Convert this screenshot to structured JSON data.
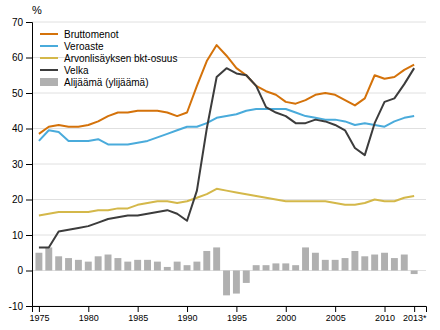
{
  "chart_data": {
    "type": "line",
    "ylabel": "%",
    "x": [
      1975,
      1976,
      1977,
      1978,
      1979,
      1980,
      1981,
      1982,
      1983,
      1984,
      1985,
      1986,
      1987,
      1988,
      1989,
      1990,
      1991,
      1992,
      1993,
      1994,
      1995,
      1996,
      1997,
      1998,
      1999,
      2000,
      2001,
      2002,
      2003,
      2004,
      2005,
      2006,
      2007,
      2008,
      2009,
      2010,
      2011,
      2012,
      2013
    ],
    "xlim": [
      1974.3,
      2014.2
    ],
    "xticks": [
      1975,
      1980,
      1985,
      1990,
      1995,
      2000,
      2005,
      2010,
      {
        "value": 2013,
        "label": "2013*"
      }
    ],
    "ylim": [
      -10,
      70
    ],
    "yticks": [
      -10,
      0,
      10,
      20,
      30,
      40,
      50,
      60,
      70
    ],
    "grid": true,
    "legend": "upper left",
    "series": [
      {
        "name": "Bruttomenot",
        "type": "line",
        "color": "#d4720a",
        "values": [
          38.5,
          40.5,
          41.0,
          40.5,
          40.5,
          41.0,
          42.0,
          43.5,
          44.5,
          44.5,
          45.0,
          45.0,
          45.0,
          44.5,
          43.5,
          44.5,
          52.0,
          59.0,
          63.5,
          60.5,
          57.0,
          55.0,
          52.0,
          50.5,
          49.5,
          47.5,
          47.0,
          48.0,
          49.5,
          50.0,
          49.5,
          48.0,
          46.5,
          48.5,
          55.0,
          54.0,
          54.5,
          56.5,
          58.0
        ]
      },
      {
        "name": "Veroaste",
        "type": "line",
        "color": "#4aabdb",
        "values": [
          36.5,
          39.5,
          39.0,
          36.5,
          36.5,
          36.5,
          37.0,
          35.5,
          35.5,
          35.5,
          36.0,
          36.5,
          37.5,
          38.5,
          39.5,
          40.5,
          40.5,
          41.5,
          43.0,
          43.5,
          44.0,
          45.0,
          45.5,
          45.5,
          45.5,
          45.5,
          44.5,
          43.5,
          43.0,
          42.5,
          42.5,
          42.0,
          41.0,
          41.5,
          41.0,
          40.5,
          42.0,
          43.0,
          43.5
        ]
      },
      {
        "name": "Arvonlisäyksen bkt-osuus",
        "type": "line",
        "color": "#d4b84a",
        "values": [
          15.5,
          16.0,
          16.5,
          16.5,
          16.5,
          16.5,
          17.0,
          17.0,
          17.5,
          17.5,
          18.5,
          19.0,
          19.5,
          19.5,
          19.0,
          19.5,
          20.5,
          21.5,
          23.0,
          22.5,
          22.0,
          21.5,
          21.0,
          20.5,
          20.0,
          19.5,
          19.5,
          19.5,
          19.5,
          19.5,
          19.0,
          18.5,
          18.5,
          19.0,
          20.0,
          19.5,
          19.5,
          20.5,
          21.0
        ]
      },
      {
        "name": "Velka",
        "type": "line",
        "color": "#3c3c3c",
        "values": [
          6.5,
          6.5,
          11.0,
          11.5,
          12.0,
          12.5,
          13.5,
          14.5,
          15.0,
          15.5,
          15.5,
          16.0,
          16.5,
          17.0,
          16.0,
          14.0,
          22.5,
          40.0,
          54.5,
          57.0,
          55.5,
          55.0,
          52.0,
          46.0,
          44.5,
          43.5,
          41.5,
          41.5,
          42.5,
          42.0,
          41.0,
          39.5,
          34.5,
          32.5,
          41.5,
          47.5,
          48.5,
          52.5,
          57.0
        ]
      },
      {
        "name": "Alijäämä (ylijäämä)",
        "type": "bar",
        "color": "#b0b0b0",
        "values": [
          5.0,
          6.5,
          4.0,
          3.5,
          3.0,
          2.5,
          4.0,
          4.5,
          3.5,
          2.5,
          3.0,
          3.0,
          2.5,
          1.0,
          2.5,
          1.5,
          2.5,
          5.5,
          6.5,
          -7.0,
          -6.5,
          -3.5,
          1.5,
          1.5,
          2.0,
          2.0,
          1.5,
          6.5,
          5.0,
          3.0,
          3.0,
          3.5,
          5.5,
          4.0,
          4.5,
          5.0,
          3.5,
          4.5,
          -1.0
        ]
      }
    ]
  }
}
